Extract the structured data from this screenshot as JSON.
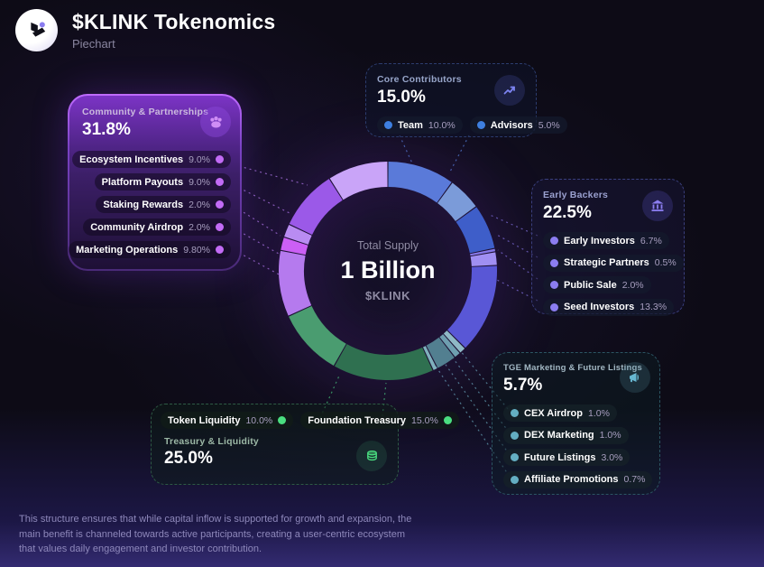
{
  "header": {
    "title": "$KLINK Tokenomics",
    "subtitle": "Piechart",
    "logo": "klink-logo"
  },
  "center": {
    "label": "Total Supply",
    "value": "1 Billion",
    "ticker": "$KLINK"
  },
  "footer": {
    "text": "This structure ensures that while capital inflow is supported for growth and expansion, the main benefit is channeled towards active participants, creating a user-centric ecosystem that values daily engagement and investor contribution."
  },
  "cards": {
    "community": {
      "title": "Community & Partnerships",
      "pct": "31.8%",
      "icon": "users-icon",
      "accent": "#c26bf5",
      "items": [
        {
          "label": "Ecosystem Incentives",
          "value": "9.0%"
        },
        {
          "label": "Platform Payouts",
          "value": "9.0%"
        },
        {
          "label": "Staking Rewards",
          "value": "2.0%"
        },
        {
          "label": "Community Airdrop",
          "value": "2.0%"
        },
        {
          "label": "Marketing Operations",
          "value": "9.80%"
        }
      ]
    },
    "core": {
      "title": "Core Contributors",
      "pct": "15.0%",
      "icon": "trend-up-icon",
      "accent": "#3e7fe0",
      "items": [
        {
          "label": "Team",
          "value": "10.0%"
        },
        {
          "label": "Advisors",
          "value": "5.0%"
        }
      ]
    },
    "early": {
      "title": "Early Backers",
      "pct": "22.5%",
      "icon": "bank-icon",
      "accent": "#8b7df0",
      "items": [
        {
          "label": "Early Investors",
          "value": "6.7%"
        },
        {
          "label": "Strategic Partners",
          "value": "0.5%"
        },
        {
          "label": "Public Sale",
          "value": "2.0%"
        },
        {
          "label": "Seed Investors",
          "value": "13.3%"
        }
      ]
    },
    "tge": {
      "title": "TGE Marketing & Future Listings",
      "pct": "5.7%",
      "icon": "megaphone-icon",
      "accent": "#64aec2",
      "items": [
        {
          "label": "CEX Airdrop",
          "value": "1.0%"
        },
        {
          "label": "DEX Marketing",
          "value": "1.0%"
        },
        {
          "label": "Future Listings",
          "value": "3.0%"
        },
        {
          "label": "Affiliate Promotions",
          "value": "0.7%"
        }
      ]
    },
    "treasury": {
      "title": "Treasury & Liquidity",
      "pct": "25.0%",
      "icon": "coins-icon",
      "accent": "#4ade80",
      "items": [
        {
          "label": "Token Liquidity",
          "value": "10.0%"
        },
        {
          "label": "Foundation Treasury",
          "value": "15.0%"
        }
      ]
    }
  },
  "chart_data": {
    "type": "pie",
    "style": "donut",
    "title": "$KLINK Tokenomics",
    "center_label": "Total Supply",
    "center_value": "1 Billion",
    "ticker": "$KLINK",
    "units": "percent",
    "start_angle_deg": 0,
    "direction": "clockwise",
    "groups": [
      {
        "name": "Core Contributors",
        "value": 15.0
      },
      {
        "name": "Early Backers",
        "value": 22.5
      },
      {
        "name": "TGE Marketing & Future Listings",
        "value": 5.7
      },
      {
        "name": "Treasury & Liquidity",
        "value": 25.0
      },
      {
        "name": "Community & Partnerships",
        "value": 31.8
      }
    ],
    "segments": [
      {
        "name": "Team",
        "group": "Core Contributors",
        "value": 10.0,
        "color": "#5a7ad9"
      },
      {
        "name": "Advisors",
        "group": "Core Contributors",
        "value": 5.0,
        "color": "#7b9bd9"
      },
      {
        "name": "Early Investors",
        "group": "Early Backers",
        "value": 6.7,
        "color": "#3e5ec9"
      },
      {
        "name": "Strategic Partners",
        "group": "Early Backers",
        "value": 0.5,
        "color": "#8678e8"
      },
      {
        "name": "Public Sale",
        "group": "Early Backers",
        "value": 2.0,
        "color": "#a08ff2"
      },
      {
        "name": "Seed Investors",
        "group": "Early Backers",
        "value": 13.3,
        "color": "#5957d6"
      },
      {
        "name": "CEX Airdrop",
        "group": "TGE Marketing & Future Listings",
        "value": 1.0,
        "color": "#8fb9c6"
      },
      {
        "name": "DEX Marketing",
        "group": "TGE Marketing & Future Listings",
        "value": 1.0,
        "color": "#6e9fb0"
      },
      {
        "name": "Future Listings",
        "group": "TGE Marketing & Future Listings",
        "value": 3.0,
        "color": "#527f90"
      },
      {
        "name": "Affiliate Promotions",
        "group": "TGE Marketing & Future Listings",
        "value": 0.7,
        "color": "#7fb0bd"
      },
      {
        "name": "Foundation Treasury",
        "group": "Treasury & Liquidity",
        "value": 15.0,
        "color": "#2f7050"
      },
      {
        "name": "Token Liquidity",
        "group": "Treasury & Liquidity",
        "value": 10.0,
        "color": "#4a9c70"
      },
      {
        "name": "Marketing Operations",
        "group": "Community & Partnerships",
        "value": 9.8,
        "color": "#b57aee"
      },
      {
        "name": "Community Airdrop",
        "group": "Community & Partnerships",
        "value": 2.0,
        "color": "#cb5ff5"
      },
      {
        "name": "Staking Rewards",
        "group": "Community & Partnerships",
        "value": 2.0,
        "color": "#b98cf2"
      },
      {
        "name": "Platform Payouts",
        "group": "Community & Partnerships",
        "value": 9.0,
        "color": "#9b59e8"
      },
      {
        "name": "Ecosystem Incentives",
        "group": "Community & Partnerships",
        "value": 9.0,
        "color": "#c9a4f8"
      }
    ]
  }
}
